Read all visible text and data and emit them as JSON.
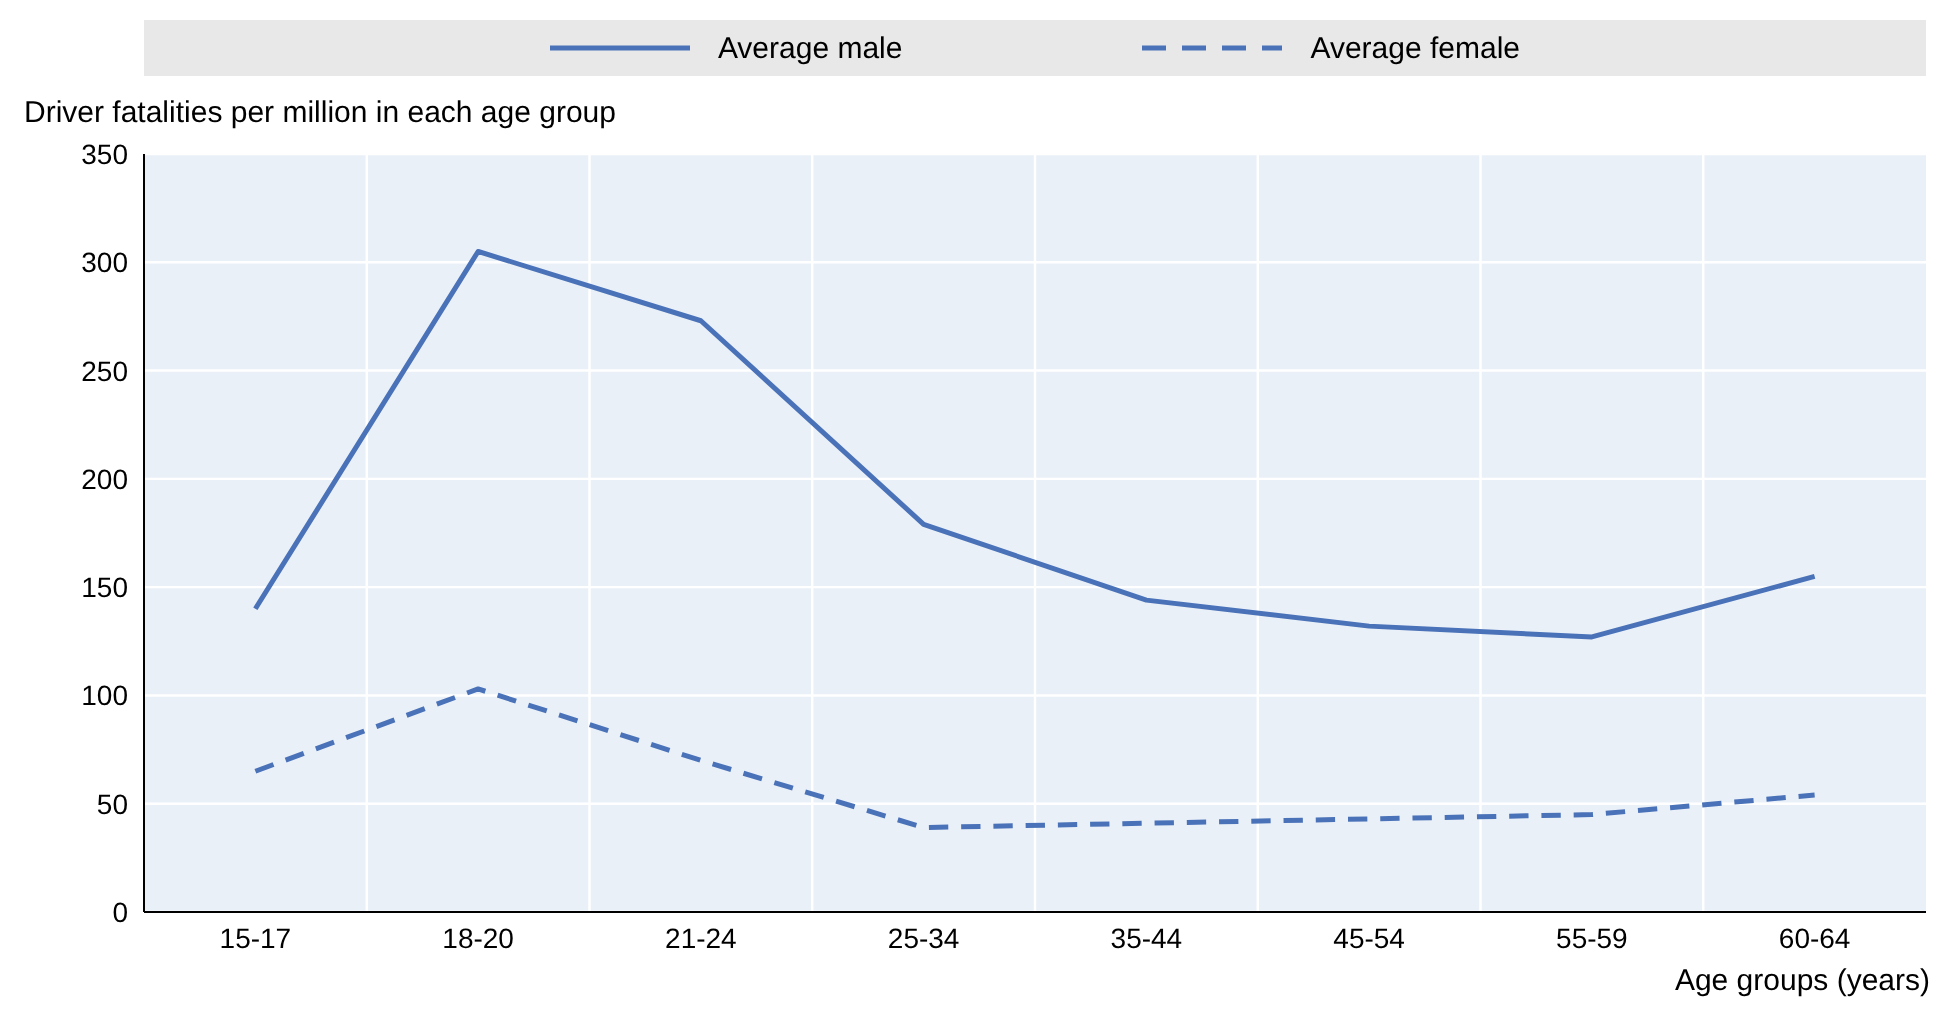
{
  "chart_data": {
    "type": "line",
    "xlabel": "Age groups (years)",
    "ylabel": "Driver fatalities per million in each age group",
    "categories": [
      "15-17",
      "18-20",
      "21-24",
      "25-34",
      "35-44",
      "45-54",
      "55-59",
      "60-64"
    ],
    "series": [
      {
        "name": "Average male",
        "color": "#4a72b8",
        "line_style": "solid",
        "values": [
          140,
          305,
          273,
          179,
          144,
          132,
          127,
          155
        ]
      },
      {
        "name": "Average female",
        "color": "#4a72b8",
        "line_style": "dashed",
        "values": [
          65,
          103,
          70,
          39,
          41,
          43,
          45,
          54
        ]
      }
    ],
    "ylim": [
      0,
      350
    ],
    "yticks": [
      0,
      50,
      100,
      150,
      200,
      250,
      300,
      350
    ],
    "grid": true,
    "legend": "top",
    "marker": "none"
  }
}
